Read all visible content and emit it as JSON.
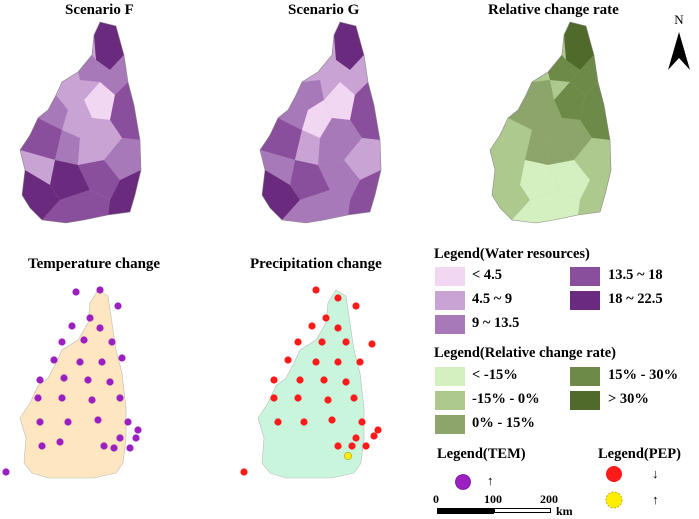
{
  "panels": {
    "scenario_f": {
      "title": "Scenario F"
    },
    "scenario_g": {
      "title": "Scenario G"
    },
    "relative_change": {
      "title": "Relative change rate"
    },
    "temperature": {
      "title": "Temperature change"
    },
    "precipitation": {
      "title": "Precipitation change"
    }
  },
  "north_arrow": {
    "label": "N"
  },
  "legend_water": {
    "title": "Legend(Water resources)",
    "items": [
      {
        "label": "< 4.5",
        "color": "#f1d7f1"
      },
      {
        "label": "4.5 ~ 9",
        "color": "#c9a3d4"
      },
      {
        "label": "9 ~ 13.5",
        "color": "#a879b8"
      },
      {
        "label": "13.5 ~ 18",
        "color": "#8a4f9c"
      },
      {
        "label": "18 ~ 22.5",
        "color": "#6a2a7d"
      }
    ]
  },
  "legend_relative": {
    "title": "Legend(Relative change rate)",
    "items": [
      {
        "label": "< -15%",
        "color": "#d4f0c0"
      },
      {
        "label": "-15% - 0%",
        "color": "#adc98e"
      },
      {
        "label": "0% - 15%",
        "color": "#8da56b"
      },
      {
        "label": "15% - 30%",
        "color": "#6e8a48"
      },
      {
        "label": "> 30%",
        "color": "#4f6a2a"
      }
    ]
  },
  "legend_tem": {
    "title": "Legend(TEM)",
    "arrow": "↑",
    "color": "#9b1fc1"
  },
  "legend_pep": {
    "title": "Legend(PEP)",
    "items": [
      {
        "arrow": "↓",
        "color": "#ff1a1a"
      },
      {
        "arrow": "↑",
        "color": "#ffee00"
      }
    ]
  },
  "scale_bar": {
    "labels": [
      "0",
      "100",
      "200"
    ],
    "unit": "km"
  },
  "map_colors": {
    "purple_fill_1": "#f1d7f1",
    "purple_fill_2": "#c9a3d4",
    "purple_fill_3": "#a879b8",
    "purple_fill_4": "#8a4f9c",
    "purple_fill_5": "#6a2a7d",
    "temperature_fill": "#fde6c0",
    "precipitation_fill": "#c8f5dc"
  }
}
